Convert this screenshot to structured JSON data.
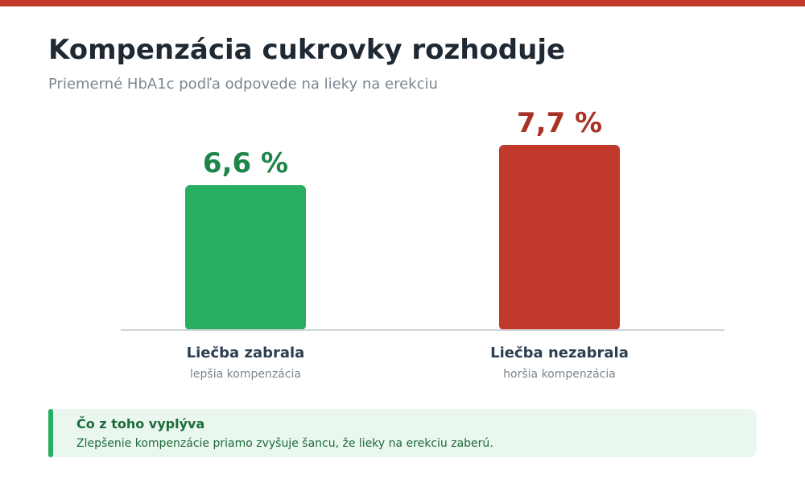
{
  "header": {
    "title": "Kompenzácia cukrovky rozhoduje",
    "subtitle": "Priemerné HbA1c podľa odpovede na lieky na erekciu"
  },
  "colors": {
    "accent_top": "#c0392b",
    "good": "#27ae60",
    "good_text": "#1e8449",
    "bad": "#c0392b",
    "bad_text": "#a93226"
  },
  "chart_data": {
    "type": "bar",
    "categories": [
      "Liečba zabrala",
      "Liečba nezabrala"
    ],
    "category_sublabels": [
      "lepšia kompenzácia",
      "horšia kompenzácia"
    ],
    "values": [
      6.6,
      7.7
    ],
    "value_labels": [
      "6,6 %",
      "7,7 %"
    ],
    "bar_colors": [
      "#27ae60",
      "#c0392b"
    ],
    "value_label_colors": [
      "#1e8449",
      "#a93226"
    ],
    "title": "Kompenzácia cukrovky rozhoduje",
    "subtitle": "Priemerné HbA1c podľa odpovede na lieky na erekciu",
    "xlabel": "",
    "ylabel": "",
    "grid": false,
    "legend": "none"
  },
  "callout": {
    "heading": "Čo z toho vyplýva",
    "text": "Zlepšenie kompenzácie priamo zvyšuje šancu, že lieky na erekciu zaberú."
  }
}
